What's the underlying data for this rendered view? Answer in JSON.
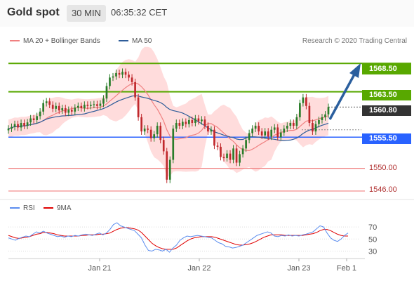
{
  "header": {
    "title": "Gold spot",
    "timeframe": "30 MIN",
    "time": "06:35:32 CET"
  },
  "legend_main": [
    {
      "label": "MA 20 + Bollinger Bands",
      "color": "#f08080"
    },
    {
      "label": "MA 50",
      "color": "#2e5c99"
    }
  ],
  "research_text": "Research © 2020 Trading Central",
  "colors": {
    "up": "#2a7d2a",
    "down": "#c0282c",
    "bands": "#ffd6d6",
    "ma20": "#f08080",
    "ma50": "#2e5c99",
    "resistance": "#58a800",
    "support": "#2962ff",
    "support_minor": "#f08080",
    "arrow": "#2b5f9e",
    "rsi": "#5b8def",
    "rsi_ma": "#e00000"
  },
  "price_labels": [
    {
      "value": "1568.50",
      "style": "resistance"
    },
    {
      "value": "1563.50",
      "style": "resistance"
    },
    {
      "value": "1560.80",
      "style": "current"
    },
    {
      "value": "1555.50",
      "style": "pivot"
    },
    {
      "value": "1550.00",
      "style": "support"
    },
    {
      "value": "1546.00",
      "style": "support"
    }
  ],
  "legend_rsi": [
    {
      "label": "RSI",
      "color": "#5b8def"
    },
    {
      "label": "9MA",
      "color": "#e00000"
    }
  ],
  "chart_data": {
    "type": "line",
    "price_axis": {
      "min": 1545,
      "max": 1571
    },
    "x_labels": [
      "Jan 21",
      "Jan 22",
      "Jan 23",
      "Feb 1"
    ],
    "levels": {
      "resistance": [
        1568.5,
        1563.5
      ],
      "current": 1560.8,
      "pivot": 1555.5,
      "support": [
        1550.0,
        1546.0
      ]
    },
    "close": [
      1557.0,
      1557.3,
      1557.8,
      1557.2,
      1558.0,
      1557.5,
      1558.1,
      1558.8,
      1558.5,
      1559.2,
      1560.0,
      1561.5,
      1561.8,
      1561.2,
      1560.5,
      1561.0,
      1560.2,
      1560.6,
      1559.8,
      1560.3,
      1560.0,
      1560.7,
      1561.0,
      1560.6,
      1561.2,
      1561.0,
      1561.2,
      1561.3,
      1561.0,
      1561.4,
      1562.3,
      1564.5,
      1566.0,
      1566.2,
      1566.8,
      1566.5,
      1567.0,
      1566.5,
      1566.0,
      1565.2,
      1562.5,
      1559.0,
      1556.5,
      1557.0,
      1556.8,
      1555.3,
      1556.0,
      1557.5,
      1555.0,
      1553.0,
      1548.0,
      1551.5,
      1557.0,
      1558.0,
      1557.5,
      1558.2,
      1557.8,
      1558.5,
      1558.0,
      1558.8,
      1558.3,
      1558.6,
      1557.5,
      1556.5,
      1556.8,
      1554.0,
      1553.8,
      1552.0,
      1551.8,
      1552.6,
      1551.5,
      1553.5,
      1551.0,
      1552.5,
      1553.5,
      1555.0,
      1556.2,
      1557.0,
      1557.5,
      1556.5,
      1555.8,
      1556.5,
      1555.6,
      1556.8,
      1557.2,
      1555.5,
      1556.3,
      1557.0,
      1557.5,
      1558.0,
      1557.5,
      1559.0,
      1561.5,
      1562.5,
      1561.0,
      1558.0,
      1556.5,
      1557.8,
      1558.5,
      1559.0,
      1559.5,
      1560.8
    ],
    "rsi": [
      52,
      50,
      48,
      51,
      53,
      55,
      54,
      58,
      62,
      60,
      63,
      60,
      58,
      56,
      54,
      55,
      53,
      55,
      54,
      56,
      55,
      57,
      58,
      57,
      56,
      58,
      60,
      57,
      60,
      66,
      74,
      77,
      72,
      70,
      68,
      66,
      64,
      58,
      52,
      40,
      31,
      30,
      33,
      32,
      30,
      33,
      28,
      35,
      40,
      48,
      52,
      55,
      54,
      55,
      56,
      55,
      54,
      53,
      52,
      48,
      44,
      42,
      38,
      37,
      35,
      36,
      38,
      40,
      44,
      48,
      52,
      56,
      58,
      60,
      62,
      60,
      55,
      54,
      56,
      55,
      57,
      55,
      56,
      55,
      57,
      58,
      60,
      62,
      67,
      72,
      70,
      60,
      52,
      48,
      46,
      50,
      56,
      60
    ],
    "rsi_ma": [
      56,
      54,
      52,
      51,
      52,
      53,
      54,
      56,
      58,
      59,
      61,
      61,
      60,
      59,
      57,
      56,
      55,
      55,
      55,
      55,
      55,
      56,
      56,
      57,
      57,
      57,
      58,
      58,
      59,
      60,
      63,
      66,
      68,
      69,
      69,
      68,
      67,
      65,
      61,
      55,
      49,
      43,
      39,
      36,
      34,
      33,
      33,
      33,
      35,
      39,
      43,
      47,
      50,
      52,
      53,
      54,
      54,
      54,
      54,
      53,
      51,
      49,
      47,
      45,
      43,
      41,
      40,
      40,
      41,
      42,
      44,
      47,
      50,
      53,
      55,
      57,
      57,
      57,
      57,
      56,
      56,
      56,
      56,
      56,
      56,
      57,
      58,
      59,
      61,
      64,
      66,
      66,
      64,
      61,
      58,
      56,
      55,
      55
    ],
    "rsi_ticks": [
      70,
      50,
      30
    ]
  }
}
